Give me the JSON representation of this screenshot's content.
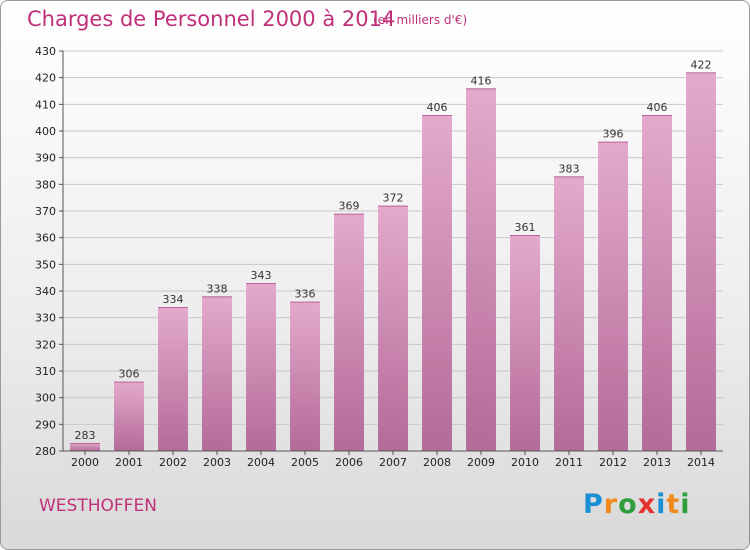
{
  "header": {
    "title": "Charges de Personnel 2000 à 2014",
    "subtitle": "(en milliers d'€)"
  },
  "footer": {
    "commune": "WESTHOFFEN",
    "logo_text": "Proxiti",
    "logo_letters": [
      {
        "ch": "P",
        "color": "#1a8fd6"
      },
      {
        "ch": "r",
        "color": "#f08a1c"
      },
      {
        "ch": "o",
        "color": "#2e9e3e"
      },
      {
        "ch": "x",
        "color": "#e5312f"
      },
      {
        "ch": "i",
        "color": "#1a8fd6"
      },
      {
        "ch": "t",
        "color": "#f08a1c"
      },
      {
        "ch": "i",
        "color": "#2e9e3e"
      }
    ]
  },
  "colors": {
    "accent": "#c0307a",
    "bar_top": "#e4a9cd",
    "bar_bottom": "#b36b97",
    "grid": "#c8c8c8"
  },
  "chart_data": {
    "type": "bar",
    "title": "Charges de Personnel 2000 à 2014",
    "subtitle": "(en milliers d'€)",
    "categories": [
      "2000",
      "2001",
      "2002",
      "2003",
      "2004",
      "2005",
      "2006",
      "2007",
      "2008",
      "2009",
      "2010",
      "2011",
      "2012",
      "2013",
      "2014"
    ],
    "values": [
      283,
      306,
      334,
      338,
      343,
      336,
      369,
      372,
      406,
      416,
      361,
      383,
      396,
      406,
      422
    ],
    "xlabel": "",
    "ylabel": "",
    "ylim": [
      280,
      430
    ],
    "yticks": [
      280,
      290,
      300,
      310,
      320,
      330,
      340,
      350,
      360,
      370,
      380,
      390,
      400,
      410,
      420,
      430
    ],
    "grid": true,
    "data_labels": true
  }
}
